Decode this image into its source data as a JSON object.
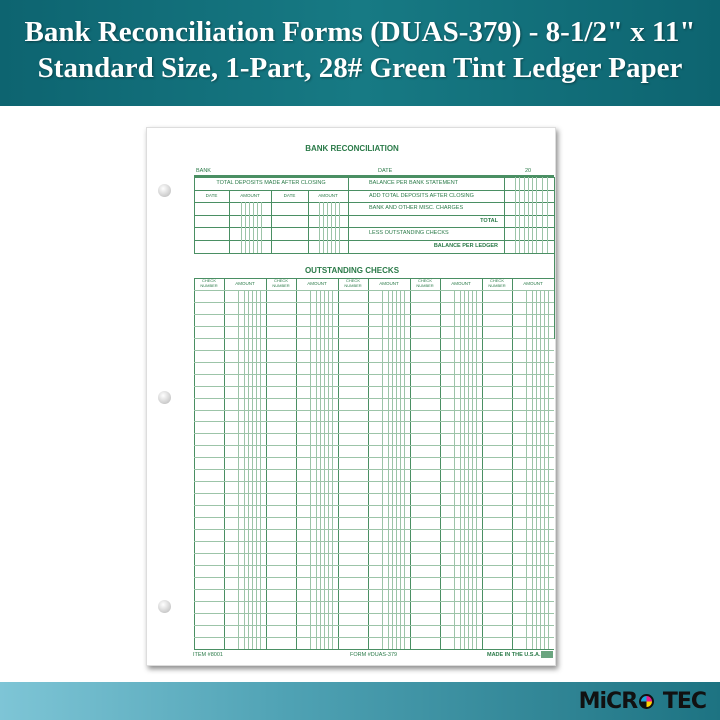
{
  "banner": {
    "line1": "Bank Reconciliation Forms (DUAS-379) - 8-1/2\" x 11\"",
    "line2": "Standard Size, 1-Part, 28# Green Tint Ledger Paper"
  },
  "form": {
    "title": "BANK RECONCILIATION",
    "bank_label": "BANK",
    "date_label": "DATE",
    "year_label": "20",
    "deposits_header": "TOTAL DEPOSITS MADE AFTER CLOSING",
    "deposit_cols": [
      "DATE",
      "AMOUNT",
      "DATE",
      "AMOUNT"
    ],
    "summary_rows": [
      "BALANCE PER BANK STATEMENT",
      "ADD TOTAL DEPOSITS AFTER CLOSING",
      "BANK AND OTHER MISC. CHARGES",
      "TOTAL",
      "LESS OUTSTANDING CHECKS",
      "BALANCE PER LEDGER"
    ],
    "checks_title": "OUTSTANDING CHECKS",
    "check_number_label": "CHECK NUMBER",
    "amount_label": "AMOUNT",
    "item": "ITEM #8001",
    "form_no": "FORM #DUAS-379",
    "made_in": "MADE IN THE U.S.A."
  },
  "brand": {
    "logo": "MICRO TEC"
  },
  "colors": {
    "form_green": "#2a7a48",
    "banner": "#0d6470"
  }
}
